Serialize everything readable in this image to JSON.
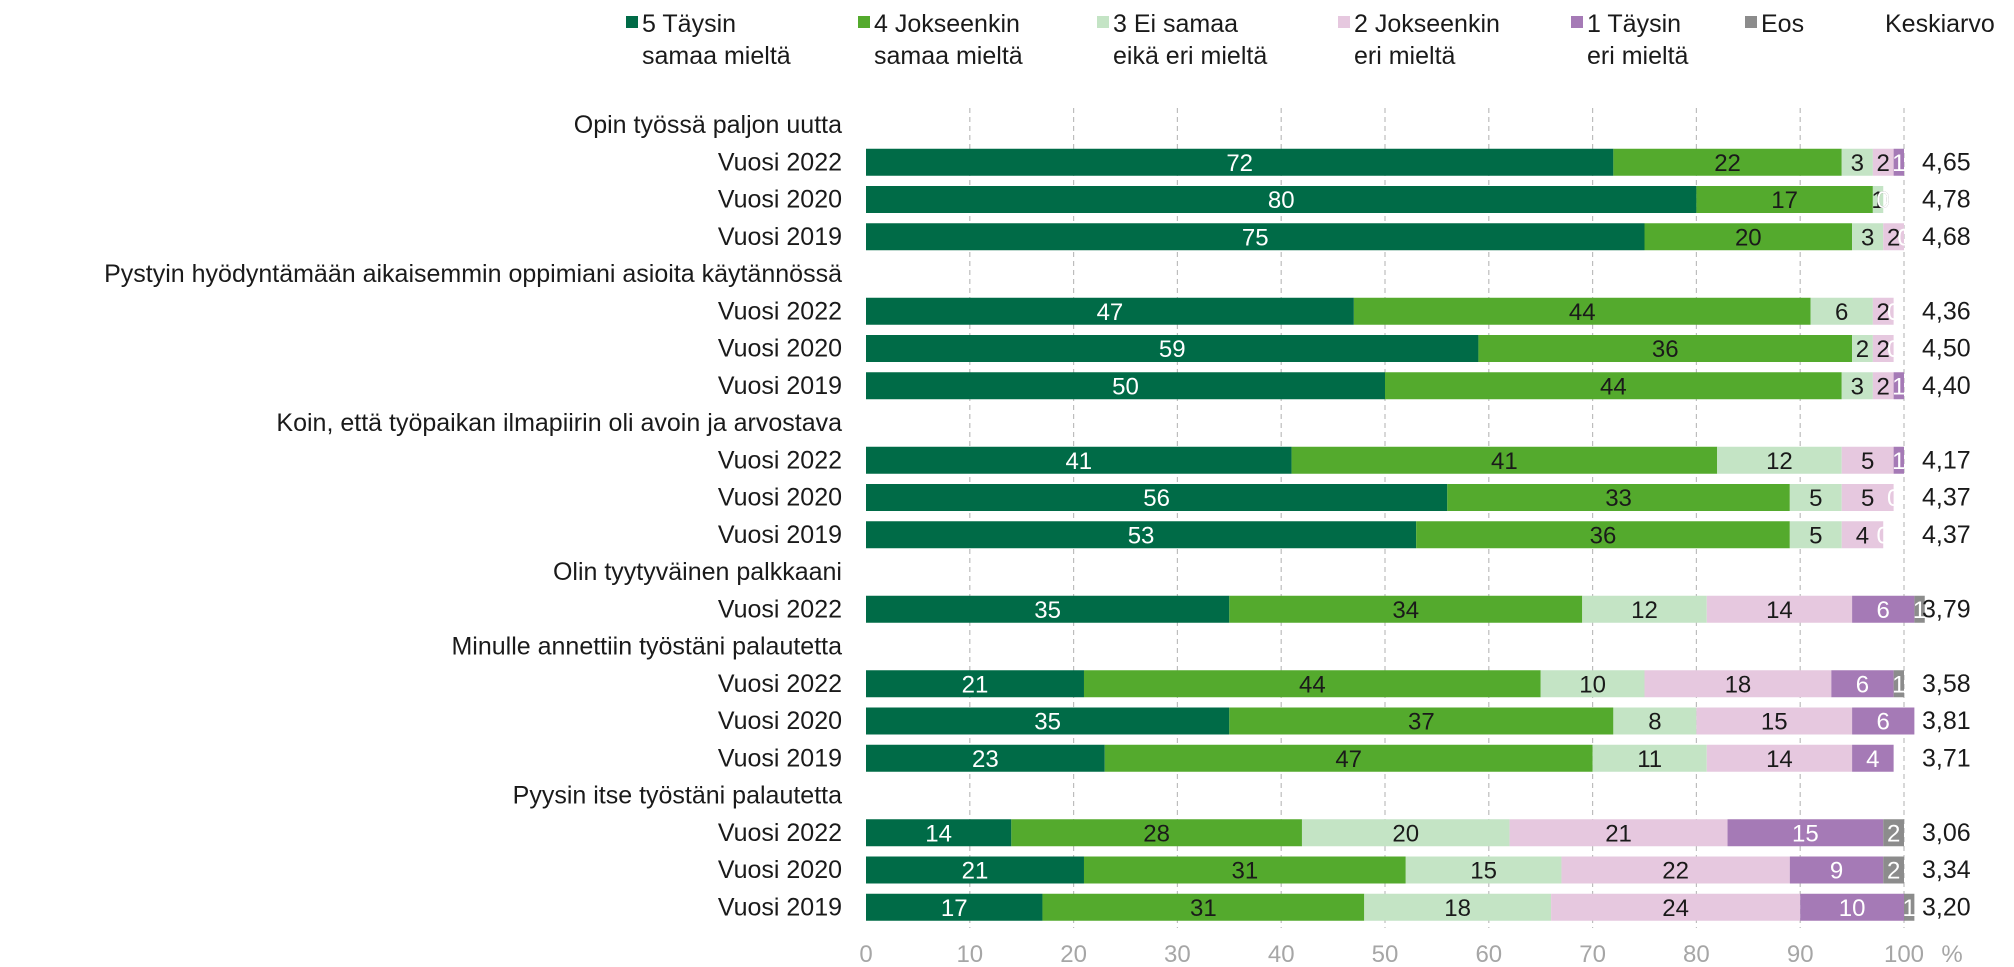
{
  "legend": {
    "items": [
      {
        "label": "5 Täysin\nsamaa mieltä",
        "color": "#006b47"
      },
      {
        "label": "4 Jokseenkin\nsamaa mieltä",
        "color": "#54aa2d"
      },
      {
        "label": "3 Ei samaa\neikä eri mieltä",
        "color": "#c4e4c5"
      },
      {
        "label": "2 Jokseenkin\neri mieltä",
        "color": "#e6c8df"
      },
      {
        "label": "1 Täysin\neri mieltä",
        "color": "#a57ab6"
      },
      {
        "label": "Eos",
        "color": "#8c8c8c"
      }
    ],
    "average_header": "Keskiarvo"
  },
  "chart_data": {
    "type": "bar",
    "orientation": "horizontal",
    "stacked": true,
    "xlim": [
      0,
      100
    ],
    "xticks": [
      0,
      10,
      20,
      30,
      40,
      50,
      60,
      70,
      80,
      90,
      100
    ],
    "xunit": "%",
    "grid": true,
    "legend_position": "top",
    "series_names": [
      "5 Täysin samaa mieltä",
      "4 Jokseenkin samaa mieltä",
      "3 Ei samaa eikä eri mieltä",
      "2 Jokseenkin eri mieltä",
      "1 Täysin eri mieltä",
      "Eos"
    ],
    "groups": [
      {
        "title": "Opin työssä paljon uutta",
        "rows": [
          {
            "label": "Vuosi 2022",
            "values": [
              72,
              22,
              3,
              2,
              1,
              0
            ],
            "avg": "4,65"
          },
          {
            "label": "Vuosi 2020",
            "values": [
              80,
              17,
              1,
              0,
              0,
              0
            ],
            "avg": "4,78"
          },
          {
            "label": "Vuosi 2019",
            "values": [
              75,
              20,
              3,
              2,
              0,
              0
            ],
            "avg": "4,68"
          }
        ]
      },
      {
        "title": "Pystyin hyödyntämään aikaisemmin oppimiani asioita käytännössä",
        "rows": [
          {
            "label": "Vuosi 2022",
            "values": [
              47,
              44,
              6,
              2,
              0,
              0
            ],
            "avg": "4,36"
          },
          {
            "label": "Vuosi 2020",
            "values": [
              59,
              36,
              2,
              2,
              0,
              0
            ],
            "avg": "4,50"
          },
          {
            "label": "Vuosi 2019",
            "values": [
              50,
              44,
              3,
              2,
              1,
              0
            ],
            "avg": "4,40"
          }
        ]
      },
      {
        "title": "Koin, että työpaikan ilmapiirin oli avoin ja arvostava",
        "rows": [
          {
            "label": "Vuosi 2022",
            "values": [
              41,
              41,
              12,
              5,
              1,
              0
            ],
            "avg": "4,17"
          },
          {
            "label": "Vuosi 2020",
            "values": [
              56,
              33,
              5,
              5,
              0,
              0
            ],
            "avg": "4,37"
          },
          {
            "label": "Vuosi 2019",
            "values": [
              53,
              36,
              5,
              4,
              0,
              0
            ],
            "avg": "4,37"
          }
        ]
      },
      {
        "title": "Olin tyytyväinen palkkaani",
        "rows": [
          {
            "label": "Vuosi 2022",
            "values": [
              35,
              34,
              12,
              14,
              6,
              1
            ],
            "avg": "3,79"
          }
        ]
      },
      {
        "title": "Minulle annettiin työstäni palautetta",
        "rows": [
          {
            "label": "Vuosi 2022",
            "values": [
              21,
              44,
              10,
              18,
              6,
              1
            ],
            "avg": "3,58"
          },
          {
            "label": "Vuosi 2020",
            "values": [
              35,
              37,
              8,
              15,
              6,
              0
            ],
            "avg": "3,81"
          },
          {
            "label": "Vuosi 2019",
            "values": [
              23,
              47,
              11,
              14,
              4,
              0
            ],
            "avg": "3,71"
          }
        ]
      },
      {
        "title": "Pyysin itse työstäni palautetta",
        "rows": [
          {
            "label": "Vuosi 2022",
            "values": [
              14,
              28,
              20,
              21,
              15,
              2
            ],
            "avg": "3,06"
          },
          {
            "label": "Vuosi 2020",
            "values": [
              21,
              31,
              15,
              22,
              9,
              2
            ],
            "avg": "3,34"
          },
          {
            "label": "Vuosi 2019",
            "values": [
              17,
              31,
              18,
              24,
              10,
              1
            ],
            "avg": "3,20"
          }
        ]
      }
    ]
  }
}
